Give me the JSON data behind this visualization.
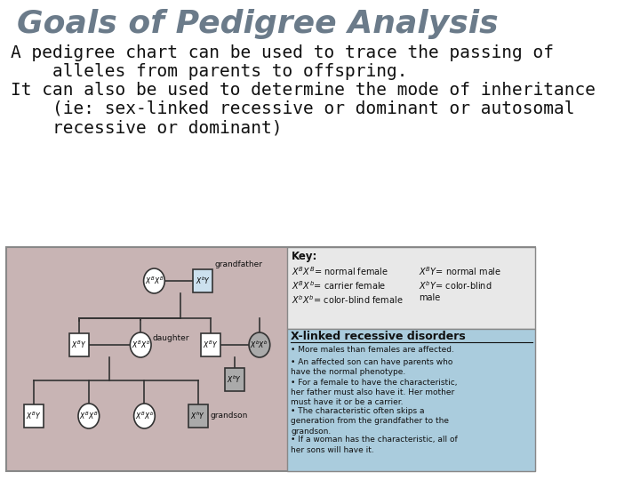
{
  "title": "Goals of Pedigree Analysis",
  "title_color": "#6b7b8a",
  "title_fontsize": 26,
  "background_color": "#ffffff",
  "body_lines": [
    "A pedigree chart can be used to trace the passing of",
    "    alleles from parents to offspring.",
    "It can also be used to determine the mode of inheritance",
    "    (ie: sex-linked recessive or dominant or autosomal",
    "    recessive or dominant)"
  ],
  "body_fontsize": 14,
  "diagram_bg": "#c8b4b4",
  "diagram_right_bg": "#aaccdd",
  "key_bg": "#e8e8e8",
  "diagram_border": "#888888"
}
